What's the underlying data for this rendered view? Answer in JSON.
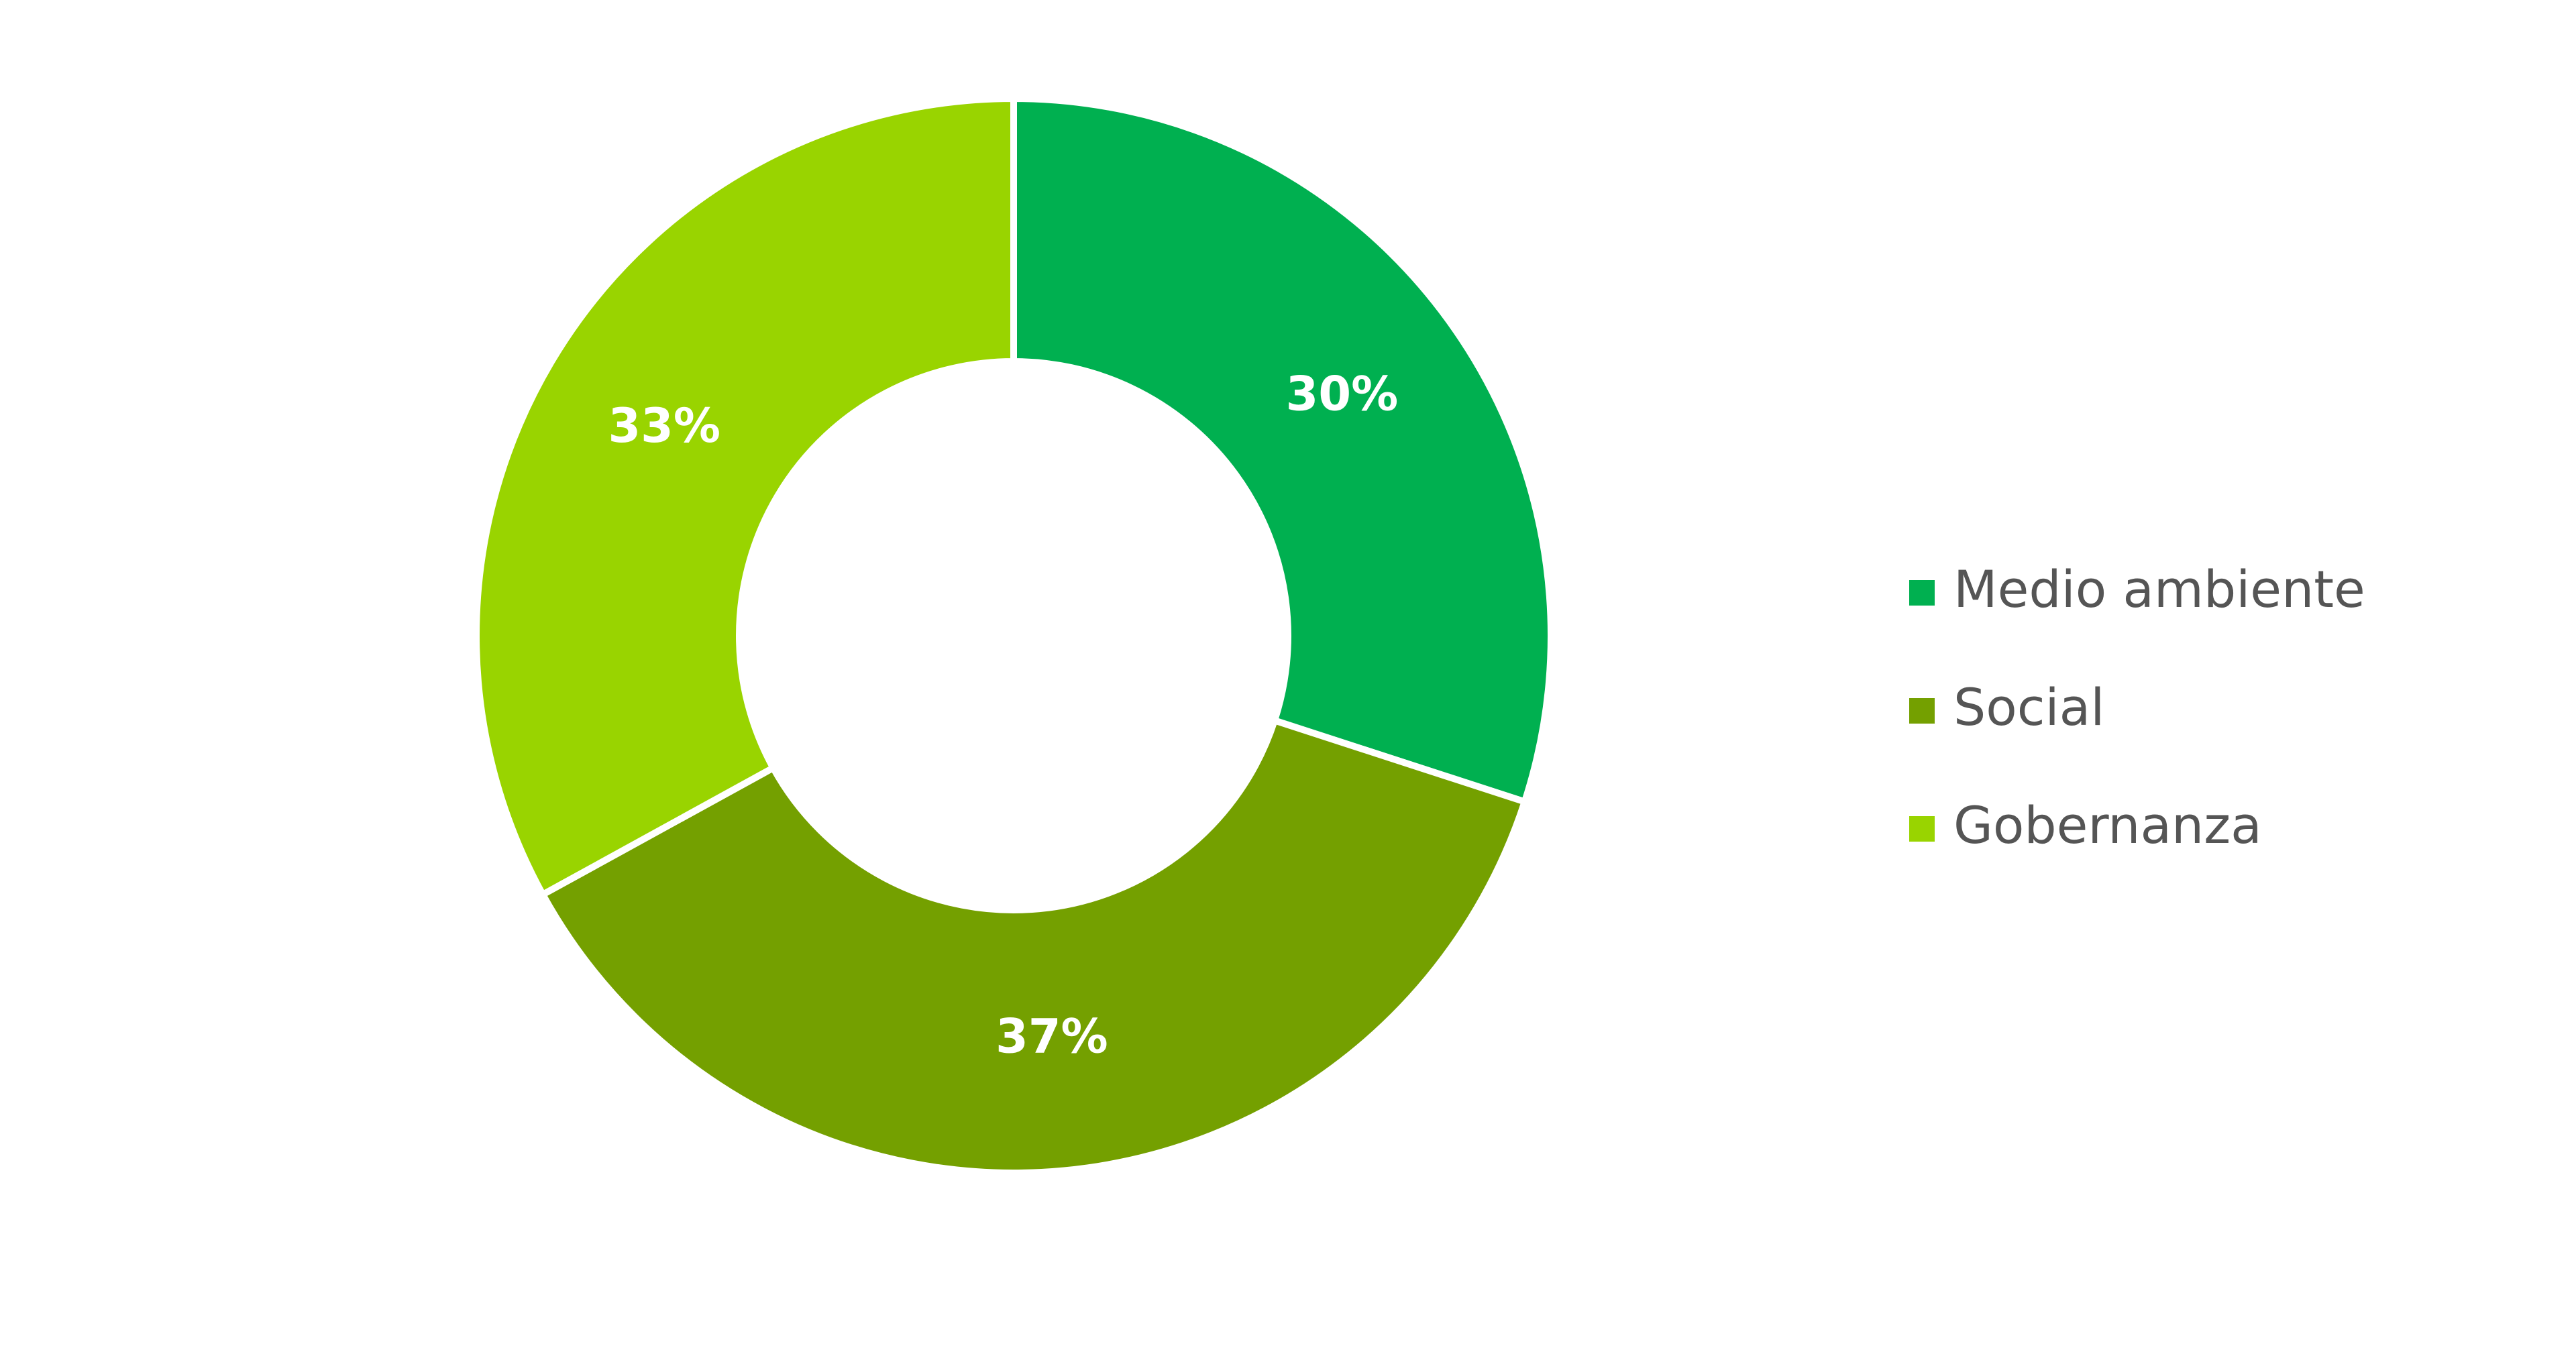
{
  "chart_data": {
    "type": "donut",
    "categories": [
      "Medio ambiente",
      "Social",
      "Gobernanza"
    ],
    "values": [
      30,
      37,
      33
    ],
    "value_labels": [
      "30%",
      "37%",
      "33%"
    ],
    "colors": [
      "#00b050",
      "#74a000",
      "#99d400"
    ],
    "legend": "right"
  }
}
